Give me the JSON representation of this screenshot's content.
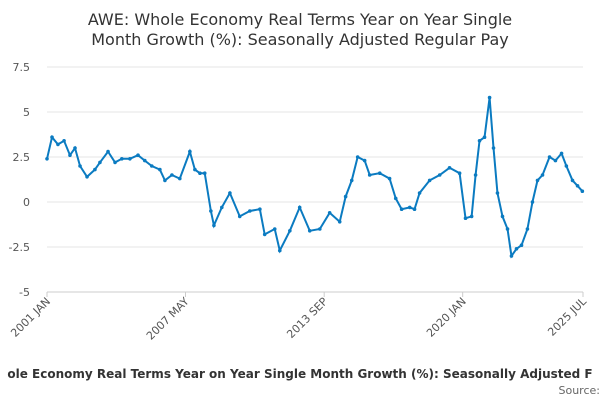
{
  "chart_data": {
    "type": "line",
    "title": [
      "AWE: Whole Economy Real Terms Year on Year Single",
      "Month Growth (%): Seasonally Adjusted Regular Pay"
    ],
    "caption": "ole Economy Real Terms Year on Year Single Month Growth (%): Seasonally Adjusted F",
    "source": "Source:",
    "x": [
      2001.0,
      2001.23,
      2001.5,
      2001.78,
      2002.05,
      2002.28,
      2002.51,
      2002.83,
      2003.19,
      2003.42,
      2003.79,
      2004.11,
      2004.42,
      2004.79,
      2005.16,
      2005.47,
      2005.79,
      2006.16,
      2006.39,
      2006.71,
      2007.07,
      2007.53,
      2007.76,
      2007.99,
      2008.21,
      2008.49,
      2008.63,
      2008.99,
      2009.36,
      2009.81,
      2010.27,
      2010.73,
      2010.95,
      2011.41,
      2011.64,
      2012.1,
      2012.55,
      2013.01,
      2013.47,
      2013.92,
      2014.38,
      2014.65,
      2014.93,
      2015.2,
      2015.52,
      2015.75,
      2016.21,
      2016.66,
      2016.94,
      2017.21,
      2017.58,
      2017.8,
      2018.03,
      2018.49,
      2018.95,
      2019.4,
      2019.86,
      2020.13,
      2020.41,
      2020.59,
      2020.77,
      2021.0,
      2021.23,
      2021.41,
      2021.59,
      2021.82,
      2022.05,
      2022.23,
      2022.46,
      2022.69,
      2022.96,
      2023.19,
      2023.42,
      2023.65,
      2023.97,
      2024.24,
      2024.52,
      2024.74,
      2025.02,
      2025.25,
      2025.47
    ],
    "series": [
      {
        "name": "AWE",
        "color": "#0b7bc1",
        "values": [
          2.4,
          3.6,
          3.2,
          3.4,
          2.6,
          3.0,
          2.0,
          1.4,
          1.8,
          2.2,
          2.8,
          2.2,
          2.4,
          2.4,
          2.6,
          2.3,
          2.0,
          1.8,
          1.2,
          1.5,
          1.3,
          2.8,
          1.8,
          1.6,
          1.6,
          -0.5,
          -1.3,
          -0.3,
          0.5,
          -0.8,
          -0.5,
          -0.4,
          -1.8,
          -1.5,
          -2.7,
          -1.6,
          -0.3,
          -1.6,
          -1.5,
          -0.6,
          -1.1,
          0.3,
          1.2,
          2.5,
          2.3,
          1.5,
          1.6,
          1.3,
          0.2,
          -0.4,
          -0.3,
          -0.4,
          0.5,
          1.2,
          1.5,
          1.9,
          1.6,
          -0.9,
          -0.8,
          1.5,
          3.4,
          3.6,
          5.8,
          3.0,
          0.5,
          -0.8,
          -1.5,
          -3.0,
          -2.6,
          -2.4,
          -1.5,
          0.0,
          1.2,
          1.5,
          2.5,
          2.3,
          2.7,
          2.0,
          1.2,
          0.9,
          0.6
        ]
      }
    ],
    "xlim": [
      2001,
      2025.5
    ],
    "xticks": [
      {
        "value": 2001,
        "label": "2001 JAN"
      },
      {
        "value": 2007.33,
        "label": "2007 MAY"
      },
      {
        "value": 2013.67,
        "label": "2013 SEP"
      },
      {
        "value": 2020,
        "label": "2020 JAN"
      },
      {
        "value": 2025.5,
        "label": "2025 JUL"
      }
    ],
    "ylim": [
      -5,
      7.5
    ],
    "yticks": [
      7.5,
      5,
      2.5,
      0,
      -2.5,
      -5
    ],
    "grid": true
  }
}
